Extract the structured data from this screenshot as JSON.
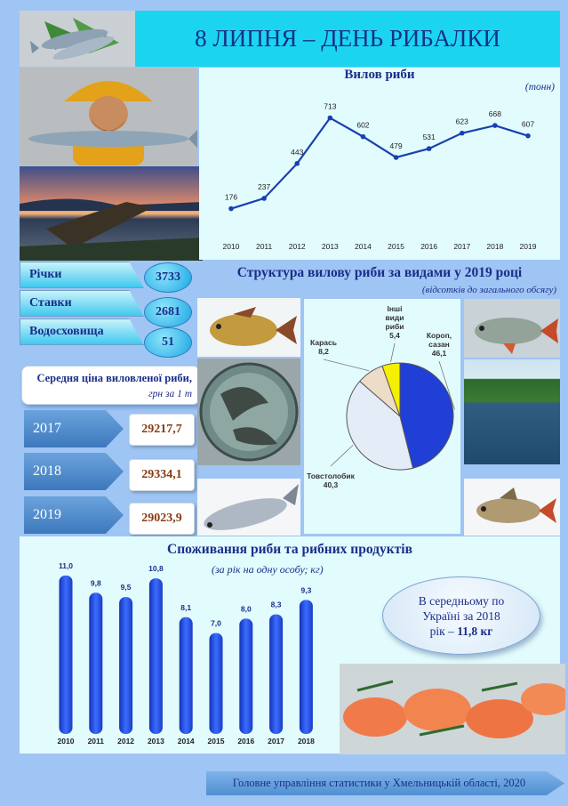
{
  "header": {
    "title": "8 ЛИПНЯ – ДЕНЬ РИБАЛКИ"
  },
  "catch_chart": {
    "title": "Вилов риби",
    "unit": "(тонн)"
  },
  "structure_chart": {
    "title": "Структура вилову риби за видами у 2019 році",
    "subtitle": "(відсотків до загального обсягу)"
  },
  "water_bodies": [
    {
      "label": "Річки",
      "value": "3733"
    },
    {
      "label": "Ставки",
      "value": "2681"
    },
    {
      "label": "Водосховища",
      "value": "51"
    }
  ],
  "average_price": {
    "label": "Середня ціна виловленої риби,",
    "unit": "грн за 1 т",
    "items": [
      {
        "year": "2017",
        "value": "29217,7"
      },
      {
        "year": "2018",
        "value": "29334,1"
      },
      {
        "year": "2019",
        "value": "29023,9"
      }
    ]
  },
  "consumption_chart": {
    "title": "Споживання риби та рибних продуктів",
    "subtitle": "(за рік на одну особу; кг)"
  },
  "ukraine_note": {
    "line1": "В середньому по",
    "line2": "Україні за 2018",
    "line3_prefix": "рік – ",
    "line3_value": "11,8 кг"
  },
  "footer": {
    "text": "Головне управління статистики у Хмельницькій області, 2020"
  },
  "colors": {
    "title_bar": "#1bd5f0",
    "text_dark_blue": "#1a2e8a",
    "line": "#1a3fb0",
    "bar": "#2a52e0",
    "price_value": "#8a3a10",
    "pie_carp": "#1f3fd6",
    "pie_silver": "#e3ecf7",
    "pie_crucian": "#eddcc8",
    "pie_other": "#f5f000"
  },
  "chart_data": [
    {
      "type": "line",
      "title": "Вилов риби",
      "unit": "(тонн)",
      "x": [
        "2010",
        "2011",
        "2012",
        "2013",
        "2014",
        "2015",
        "2016",
        "2017",
        "2018",
        "2019"
      ],
      "values": [
        176,
        237,
        443,
        713,
        602,
        479,
        531,
        623,
        668,
        607
      ],
      "labels": [
        "176",
        "237",
        "443",
        "713",
        "602",
        "479",
        "531",
        "623",
        "668",
        "607"
      ],
      "ylim": [
        0,
        800
      ],
      "grid": false
    },
    {
      "type": "pie",
      "title": "Структура вилову риби за видами у 2019 році",
      "subtitle": "(відсотків до загального обсягу)",
      "slices": [
        {
          "label_lines": [
            "Короп,",
            "сазан",
            "46,1"
          ],
          "value": 46.1,
          "color": "#1f3fd6"
        },
        {
          "label_lines": [
            "Товстолобик",
            "40,3"
          ],
          "value": 40.3,
          "color": "#e3ecf7"
        },
        {
          "label_lines": [
            "Карась",
            "8,2"
          ],
          "value": 8.2,
          "color": "#eddcc8"
        },
        {
          "label_lines": [
            "Інші",
            "види",
            "риби",
            "5,4"
          ],
          "value": 5.4,
          "color": "#f5f000"
        }
      ]
    },
    {
      "type": "bar",
      "title": "Споживання риби та рибних продуктів",
      "subtitle": "(за рік на одну особу; кг)",
      "categories": [
        "2010",
        "2011",
        "2012",
        "2013",
        "2014",
        "2015",
        "2016",
        "2017",
        "2018"
      ],
      "values": [
        11.0,
        9.8,
        9.5,
        10.8,
        8.1,
        7.0,
        8.0,
        8.3,
        9.3
      ],
      "labels": [
        "11,0",
        "9,8",
        "9,5",
        "10,8",
        "8,1",
        "7,0",
        "8,0",
        "8,3",
        "9,3"
      ],
      "ylim": [
        0,
        12
      ],
      "grid": false
    }
  ]
}
